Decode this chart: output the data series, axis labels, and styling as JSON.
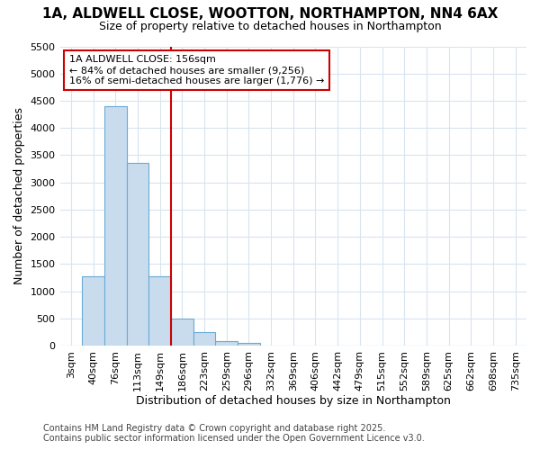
{
  "title_line1": "1A, ALDWELL CLOSE, WOOTTON, NORTHAMPTON, NN4 6AX",
  "title_line2": "Size of property relative to detached houses in Northampton",
  "xlabel": "Distribution of detached houses by size in Northampton",
  "ylabel": "Number of detached properties",
  "categories": [
    "3sqm",
    "40sqm",
    "76sqm",
    "113sqm",
    "149sqm",
    "186sqm",
    "223sqm",
    "259sqm",
    "296sqm",
    "332sqm",
    "369sqm",
    "406sqm",
    "442sqm",
    "479sqm",
    "515sqm",
    "552sqm",
    "589sqm",
    "625sqm",
    "662sqm",
    "698sqm",
    "735sqm"
  ],
  "values": [
    0,
    1280,
    4400,
    3350,
    1280,
    500,
    240,
    80,
    50,
    0,
    0,
    0,
    0,
    0,
    0,
    0,
    0,
    0,
    0,
    0,
    0
  ],
  "bar_color": "#c8dcee",
  "bar_edge_color": "#6aaad4",
  "vline_color": "#cc0000",
  "vline_pos": 4.5,
  "annotation_text": "1A ALDWELL CLOSE: 156sqm\n← 84% of detached houses are smaller (9,256)\n16% of semi-detached houses are larger (1,776) →",
  "annotation_box_color": "#ffffff",
  "annotation_box_edge": "#cc0000",
  "ylim_max": 5500,
  "yticks": [
    0,
    500,
    1000,
    1500,
    2000,
    2500,
    3000,
    3500,
    4000,
    4500,
    5000,
    5500
  ],
  "footer_line1": "Contains HM Land Registry data © Crown copyright and database right 2025.",
  "footer_line2": "Contains public sector information licensed under the Open Government Licence v3.0.",
  "bg_color": "#ffffff",
  "grid_color": "#d8e4f0",
  "tick_fontsize": 8,
  "label_fontsize": 9,
  "title1_fontsize": 11,
  "title2_fontsize": 9,
  "footer_fontsize": 7
}
